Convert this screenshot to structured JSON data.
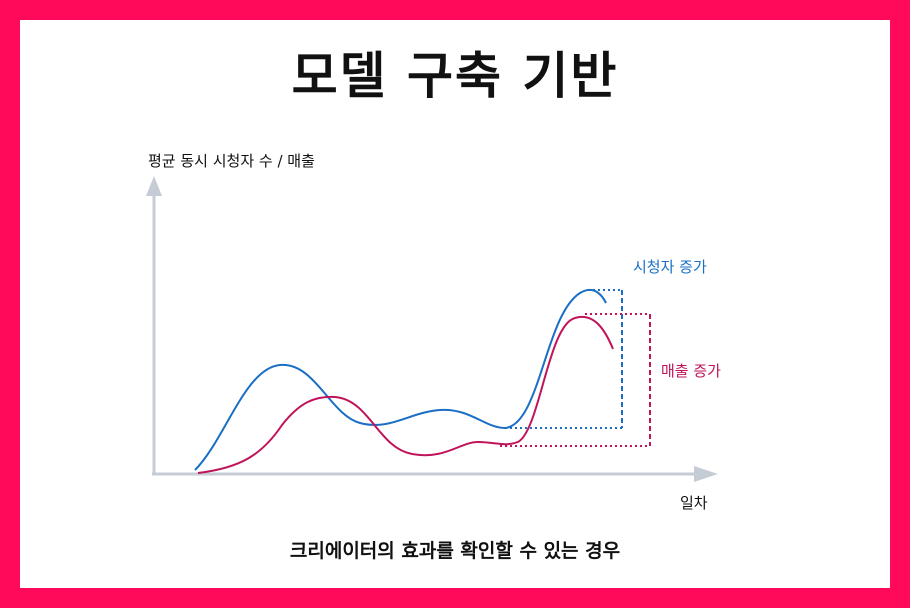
{
  "title": "모델 구축 기반",
  "subtitle": "크리에이터의 효과를 확인할 수 있는 경우",
  "axes": {
    "y_label": "평균 동시 시청자 수 / 매출",
    "x_label": "일차"
  },
  "annotations": {
    "viewer_increase": "시청자 증가",
    "sales_increase": "매출 증가"
  },
  "colors": {
    "frame": "#ff0a5a",
    "viewers": "#1a6fc4",
    "sales": "#c0145a",
    "axis": "#c5ccd6"
  }
}
